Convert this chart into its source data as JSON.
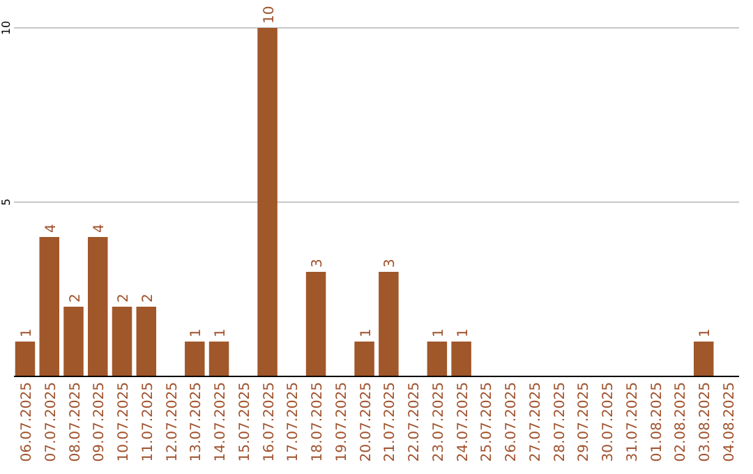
{
  "chart_data": {
    "type": "bar",
    "categories": [
      "06.07.2025",
      "07.07.2025",
      "08.07.2025",
      "09.07.2025",
      "10.07.2025",
      "11.07.2025",
      "12.07.2025",
      "13.07.2025",
      "14.07.2025",
      "15.07.2025",
      "16.07.2025",
      "17.07.2025",
      "18.07.2025",
      "19.07.2025",
      "20.07.2025",
      "21.07.2025",
      "22.07.2025",
      "23.07.2025",
      "24.07.2025",
      "25.07.2025",
      "26.07.2025",
      "27.07.2025",
      "28.07.2025",
      "29.07.2025",
      "30.07.2025",
      "31.07.2025",
      "01.08.2025",
      "02.08.2025",
      "03.08.2025",
      "04.08.2025"
    ],
    "values": [
      1,
      4,
      2,
      4,
      2,
      2,
      0,
      1,
      1,
      0,
      10,
      0,
      3,
      0,
      1,
      3,
      0,
      1,
      1,
      0,
      0,
      0,
      0,
      0,
      0,
      0,
      0,
      0,
      1,
      0
    ],
    "value_labels": [
      "1",
      "4",
      "2",
      "4",
      "2",
      "2",
      null,
      "1",
      "1",
      null,
      "10",
      null,
      "3",
      null,
      "1",
      "3",
      null,
      "1",
      "1",
      null,
      null,
      null,
      null,
      null,
      null,
      null,
      null,
      null,
      "1",
      null
    ],
    "color": "#a0572a",
    "ylim": [
      0,
      10
    ],
    "yticks": [
      5,
      10
    ],
    "grid": "y"
  }
}
